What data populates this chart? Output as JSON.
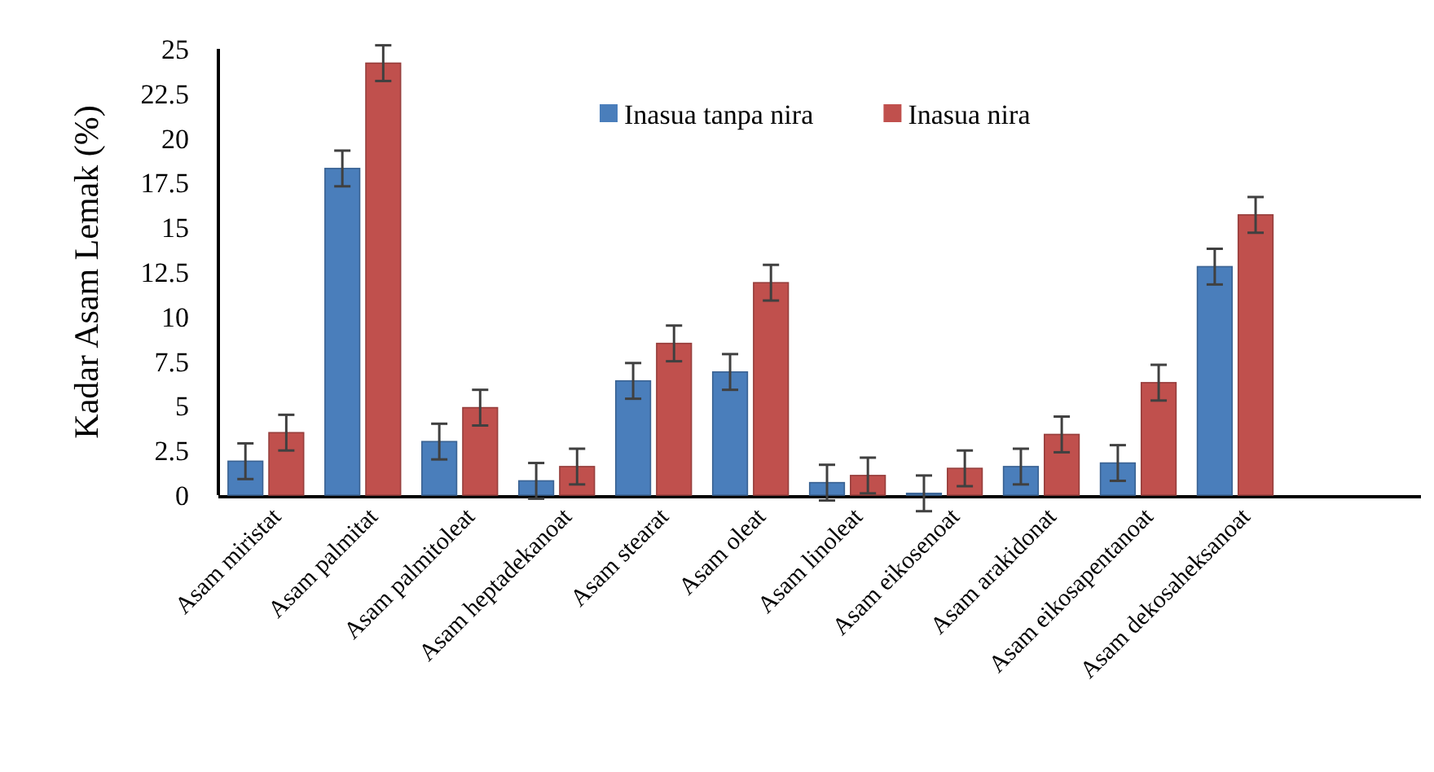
{
  "chart_data": {
    "type": "bar",
    "ylabel": "Kadar Asam Lemak (%)",
    "categories": [
      "Asam miristat",
      "Asam palmitat",
      "Asam palmitoleat",
      "Asam heptadekanoat",
      "Asam stearat",
      "Asam oleat",
      "Asam linoleat",
      "Asam eikosenoat",
      "Asam arakidonat",
      "Asam eikosapentanoat",
      "Asam dekosaheksanoat"
    ],
    "series": [
      {
        "name": "Inasua tanpa nira",
        "color": "#4a7ebb",
        "values": [
          1.9,
          18.3,
          3.0,
          0.8,
          6.4,
          6.9,
          0.7,
          0.1,
          1.6,
          1.8,
          12.8
        ],
        "errors": [
          1,
          1,
          1,
          1,
          1,
          1,
          1,
          1,
          1,
          1,
          1
        ]
      },
      {
        "name": "Inasua nira",
        "color": "#c0504d",
        "values": [
          3.5,
          24.2,
          4.9,
          1.6,
          8.5,
          11.9,
          1.1,
          1.5,
          3.4,
          6.3,
          15.7
        ],
        "errors": [
          1,
          1,
          1,
          1,
          1,
          1,
          1,
          1,
          1,
          1,
          1
        ]
      }
    ],
    "ylim": [
      0,
      25
    ],
    "yticks": [
      0,
      {
        "value": 2.5,
        "label": "2.5"
      },
      5,
      {
        "value": 7.5,
        "label": "7.5"
      },
      10,
      {
        "value": 12.5,
        "label": "12.5"
      },
      15,
      {
        "value": 17.5,
        "label": "17.5"
      },
      20,
      {
        "value": 22.5,
        "label": "22.5"
      },
      25
    ],
    "grid": false,
    "legend": "top"
  }
}
